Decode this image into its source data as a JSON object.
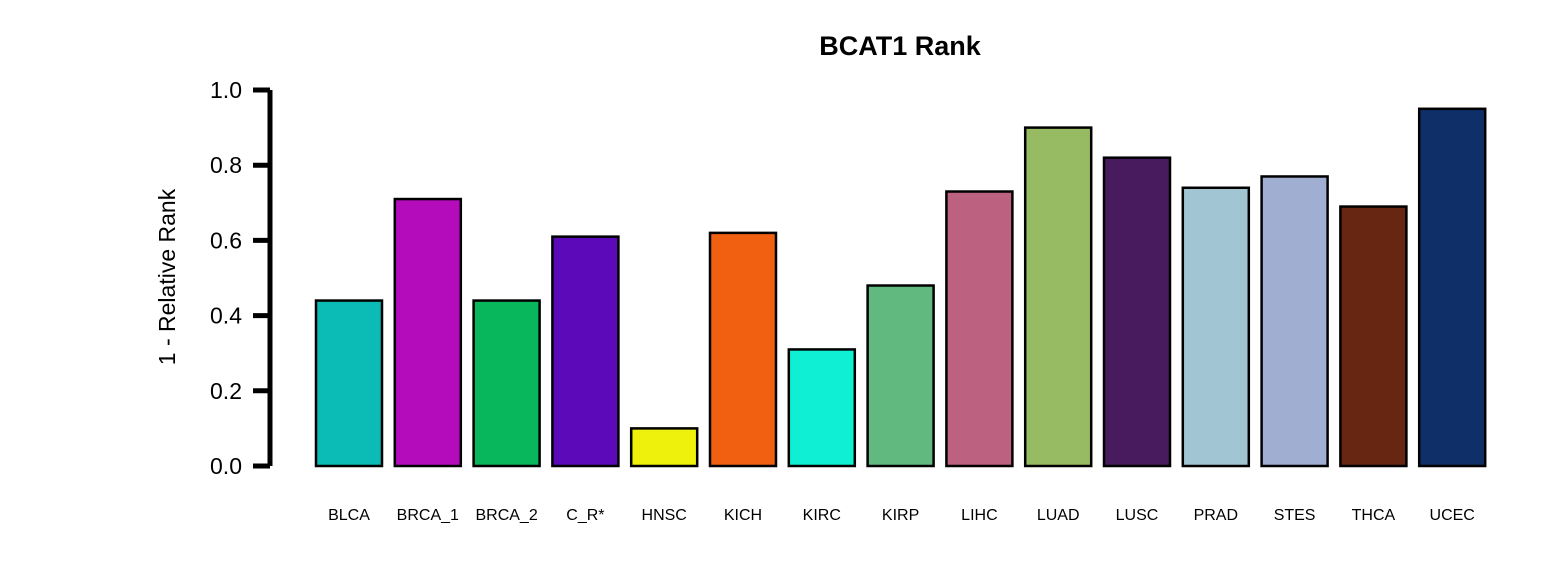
{
  "chart_data": {
    "type": "bar",
    "title": "BCAT1 Rank",
    "xlabel": "",
    "ylabel": "1 - Relative Rank",
    "ylim": [
      0,
      1.0
    ],
    "yticks": [
      "0.0",
      "0.2",
      "0.4",
      "0.6",
      "0.8",
      "1.0"
    ],
    "grid": false,
    "legend": "none",
    "categories": [
      "BLCA",
      "BRCA_1",
      "BRCA_2",
      "C_R*",
      "HNSC",
      "KICH",
      "KIRC",
      "KIRP",
      "LIHC",
      "LUAD",
      "LUSC",
      "PRAD",
      "STES",
      "THCA",
      "UCEC"
    ],
    "values": [
      0.44,
      0.71,
      0.44,
      0.61,
      0.1,
      0.62,
      0.31,
      0.48,
      0.73,
      0.9,
      0.82,
      0.74,
      0.77,
      0.69,
      0.95
    ],
    "colors": [
      "#0bbbb5",
      "#b40cbb",
      "#08b65b",
      "#5c0ab9",
      "#eef10c",
      "#f06010",
      "#0fefd4",
      "#62b980",
      "#bc6180",
      "#97bb62",
      "#471b5e",
      "#a1c5d3",
      "#a0aed1",
      "#662611",
      "#0e2f67"
    ]
  }
}
